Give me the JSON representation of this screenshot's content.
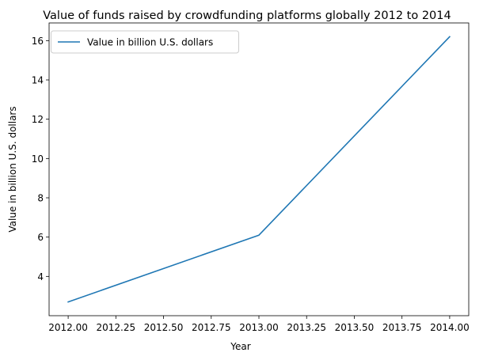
{
  "chart_data": {
    "type": "line",
    "title": "Value of funds raised by crowdfunding platforms globally 2012 to 2014",
    "xlabel": "Year",
    "ylabel": "Value in billion U.S. dollars",
    "x_ticks": [
      "2012.00",
      "2012.25",
      "2012.50",
      "2012.75",
      "2013.00",
      "2013.25",
      "2013.50",
      "2013.75",
      "2014.00"
    ],
    "y_ticks": [
      "4",
      "6",
      "8",
      "10",
      "12",
      "14",
      "16"
    ],
    "xlim": [
      2011.9,
      2014.1
    ],
    "ylim": [
      2.0,
      16.9
    ],
    "grid": false,
    "legend_position": "top-left",
    "series": [
      {
        "name": "Value in billion U.S. dollars",
        "color": "#1f77b4",
        "x": [
          2012,
          2013,
          2014
        ],
        "y": [
          2.7,
          6.1,
          16.2
        ]
      }
    ]
  }
}
